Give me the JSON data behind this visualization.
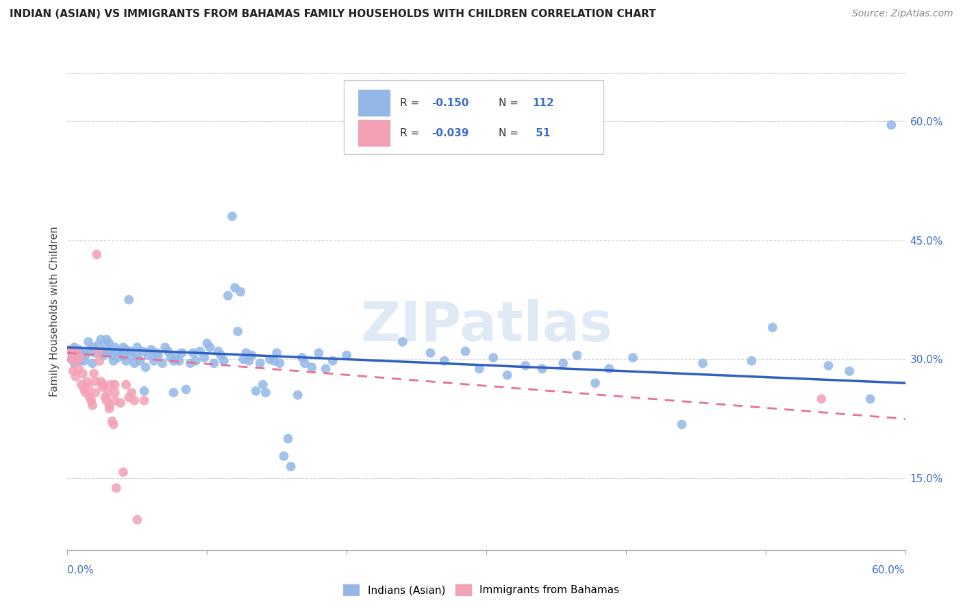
{
  "title": "INDIAN (ASIAN) VS IMMIGRANTS FROM BAHAMAS FAMILY HOUSEHOLDS WITH CHILDREN CORRELATION CHART",
  "source": "Source: ZipAtlas.com",
  "ylabel": "Family Households with Children",
  "xmin": 0.0,
  "xmax": 0.6,
  "ymin": 0.06,
  "ymax": 0.66,
  "yticks": [
    0.15,
    0.3,
    0.45,
    0.6
  ],
  "ytick_labels": [
    "15.0%",
    "30.0%",
    "45.0%",
    "60.0%"
  ],
  "watermark": "ZIPatlas",
  "legend_label1": "Indians (Asian)",
  "legend_label2": "Immigrants from Bahamas",
  "blue_color": "#92b8e8",
  "pink_color": "#f4a0b5",
  "blue_line_color": "#3060c0",
  "pink_line_color": "#e87090",
  "background_color": "#ffffff",
  "grid_color": "#d0d0d0",
  "blue_scatter": [
    [
      0.002,
      0.31
    ],
    [
      0.003,
      0.3
    ],
    [
      0.004,
      0.305
    ],
    [
      0.005,
      0.315
    ],
    [
      0.005,
      0.295
    ],
    [
      0.006,
      0.308
    ],
    [
      0.007,
      0.302
    ],
    [
      0.008,
      0.312
    ],
    [
      0.009,
      0.298
    ],
    [
      0.01,
      0.305
    ],
    [
      0.011,
      0.31
    ],
    [
      0.012,
      0.298
    ],
    [
      0.013,
      0.305
    ],
    [
      0.015,
      0.322
    ],
    [
      0.016,
      0.31
    ],
    [
      0.018,
      0.295
    ],
    [
      0.018,
      0.315
    ],
    [
      0.02,
      0.308
    ],
    [
      0.022,
      0.318
    ],
    [
      0.024,
      0.325
    ],
    [
      0.025,
      0.31
    ],
    [
      0.026,
      0.305
    ],
    [
      0.028,
      0.315
    ],
    [
      0.028,
      0.325
    ],
    [
      0.03,
      0.32
    ],
    [
      0.03,
      0.31
    ],
    [
      0.032,
      0.305
    ],
    [
      0.033,
      0.298
    ],
    [
      0.034,
      0.315
    ],
    [
      0.035,
      0.31
    ],
    [
      0.036,
      0.302
    ],
    [
      0.038,
      0.308
    ],
    [
      0.04,
      0.315
    ],
    [
      0.04,
      0.305
    ],
    [
      0.042,
      0.298
    ],
    [
      0.042,
      0.312
    ],
    [
      0.044,
      0.375
    ],
    [
      0.045,
      0.31
    ],
    [
      0.046,
      0.305
    ],
    [
      0.048,
      0.295
    ],
    [
      0.05,
      0.315
    ],
    [
      0.05,
      0.305
    ],
    [
      0.052,
      0.298
    ],
    [
      0.054,
      0.31
    ],
    [
      0.055,
      0.26
    ],
    [
      0.056,
      0.29
    ],
    [
      0.058,
      0.305
    ],
    [
      0.06,
      0.312
    ],
    [
      0.062,
      0.298
    ],
    [
      0.064,
      0.308
    ],
    [
      0.065,
      0.305
    ],
    [
      0.068,
      0.295
    ],
    [
      0.07,
      0.315
    ],
    [
      0.072,
      0.31
    ],
    [
      0.074,
      0.302
    ],
    [
      0.076,
      0.298
    ],
    [
      0.076,
      0.258
    ],
    [
      0.078,
      0.305
    ],
    [
      0.08,
      0.298
    ],
    [
      0.082,
      0.308
    ],
    [
      0.085,
      0.262
    ],
    [
      0.088,
      0.295
    ],
    [
      0.09,
      0.308
    ],
    [
      0.092,
      0.298
    ],
    [
      0.095,
      0.31
    ],
    [
      0.098,
      0.302
    ],
    [
      0.1,
      0.32
    ],
    [
      0.102,
      0.315
    ],
    [
      0.105,
      0.295
    ],
    [
      0.108,
      0.31
    ],
    [
      0.11,
      0.305
    ],
    [
      0.112,
      0.298
    ],
    [
      0.115,
      0.38
    ],
    [
      0.118,
      0.48
    ],
    [
      0.12,
      0.39
    ],
    [
      0.122,
      0.335
    ],
    [
      0.124,
      0.385
    ],
    [
      0.126,
      0.3
    ],
    [
      0.128,
      0.308
    ],
    [
      0.13,
      0.298
    ],
    [
      0.132,
      0.305
    ],
    [
      0.135,
      0.26
    ],
    [
      0.138,
      0.295
    ],
    [
      0.14,
      0.268
    ],
    [
      0.142,
      0.258
    ],
    [
      0.145,
      0.3
    ],
    [
      0.148,
      0.298
    ],
    [
      0.15,
      0.308
    ],
    [
      0.152,
      0.295
    ],
    [
      0.155,
      0.178
    ],
    [
      0.158,
      0.2
    ],
    [
      0.16,
      0.165
    ],
    [
      0.165,
      0.255
    ],
    [
      0.168,
      0.302
    ],
    [
      0.17,
      0.295
    ],
    [
      0.175,
      0.29
    ],
    [
      0.18,
      0.308
    ],
    [
      0.185,
      0.288
    ],
    [
      0.19,
      0.298
    ],
    [
      0.2,
      0.305
    ],
    [
      0.24,
      0.322
    ],
    [
      0.26,
      0.308
    ],
    [
      0.27,
      0.298
    ],
    [
      0.285,
      0.31
    ],
    [
      0.295,
      0.288
    ],
    [
      0.305,
      0.302
    ],
    [
      0.315,
      0.28
    ],
    [
      0.328,
      0.292
    ],
    [
      0.34,
      0.288
    ],
    [
      0.355,
      0.295
    ],
    [
      0.365,
      0.305
    ],
    [
      0.378,
      0.27
    ],
    [
      0.388,
      0.288
    ],
    [
      0.405,
      0.302
    ],
    [
      0.44,
      0.218
    ],
    [
      0.455,
      0.295
    ],
    [
      0.49,
      0.298
    ],
    [
      0.505,
      0.34
    ],
    [
      0.545,
      0.292
    ],
    [
      0.56,
      0.285
    ],
    [
      0.575,
      0.25
    ],
    [
      0.59,
      0.595
    ]
  ],
  "pink_scatter": [
    [
      0.002,
      0.312
    ],
    [
      0.003,
      0.3
    ],
    [
      0.004,
      0.285
    ],
    [
      0.005,
      0.31
    ],
    [
      0.005,
      0.298
    ],
    [
      0.006,
      0.278
    ],
    [
      0.007,
      0.308
    ],
    [
      0.008,
      0.288
    ],
    [
      0.009,
      0.302
    ],
    [
      0.01,
      0.268
    ],
    [
      0.011,
      0.282
    ],
    [
      0.012,
      0.262
    ],
    [
      0.013,
      0.258
    ],
    [
      0.014,
      0.272
    ],
    [
      0.015,
      0.265
    ],
    [
      0.016,
      0.252
    ],
    [
      0.017,
      0.248
    ],
    [
      0.018,
      0.242
    ],
    [
      0.019,
      0.282
    ],
    [
      0.02,
      0.272
    ],
    [
      0.02,
      0.258
    ],
    [
      0.021,
      0.432
    ],
    [
      0.022,
      0.31
    ],
    [
      0.023,
      0.298
    ],
    [
      0.024,
      0.272
    ],
    [
      0.025,
      0.265
    ],
    [
      0.026,
      0.268
    ],
    [
      0.027,
      0.252
    ],
    [
      0.028,
      0.248
    ],
    [
      0.029,
      0.258
    ],
    [
      0.03,
      0.242
    ],
    [
      0.03,
      0.238
    ],
    [
      0.031,
      0.268
    ],
    [
      0.032,
      0.222
    ],
    [
      0.033,
      0.218
    ],
    [
      0.034,
      0.258
    ],
    [
      0.034,
      0.268
    ],
    [
      0.034,
      0.248
    ],
    [
      0.035,
      0.138
    ],
    [
      0.038,
      0.245
    ],
    [
      0.04,
      0.158
    ],
    [
      0.042,
      0.268
    ],
    [
      0.044,
      0.252
    ],
    [
      0.046,
      0.258
    ],
    [
      0.048,
      0.248
    ],
    [
      0.05,
      0.098
    ],
    [
      0.055,
      0.248
    ],
    [
      0.54,
      0.25
    ]
  ],
  "blue_trend_x": [
    0.0,
    0.6
  ],
  "blue_trend_y": [
    0.315,
    0.27
  ],
  "pink_trend_x": [
    0.0,
    0.6
  ],
  "pink_trend_y": [
    0.308,
    0.225
  ]
}
